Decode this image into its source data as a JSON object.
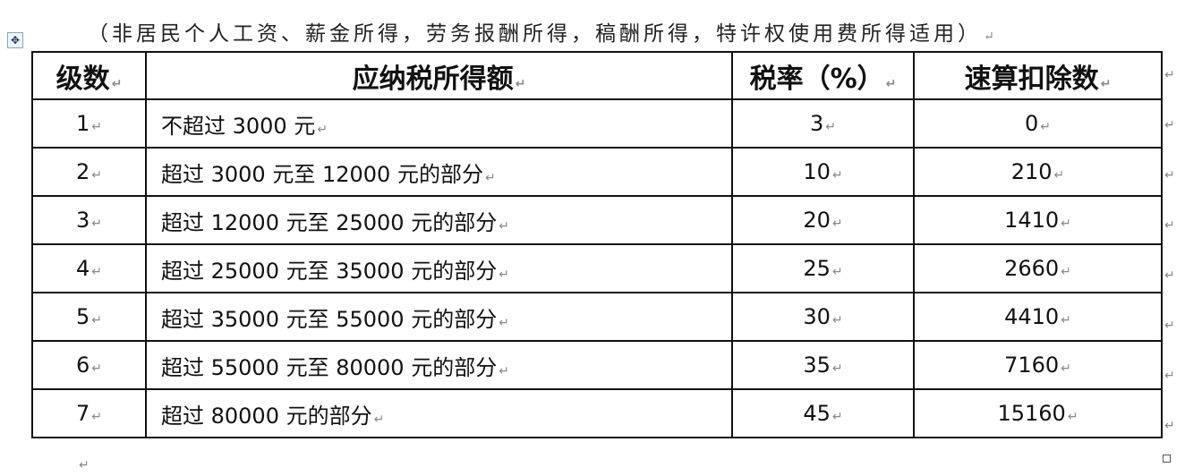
{
  "caption": "（非居民个人工资、薪金所得，劳务报酬所得，稿酬所得，特许权使用费所得适用）",
  "paragraph_mark": "↵",
  "table": {
    "headers": [
      "级数",
      "应纳税所得额",
      "税率（%）",
      "速算扣除数"
    ],
    "rows": [
      [
        "1",
        "不超过 3000 元",
        "3",
        "0"
      ],
      [
        "2",
        "超过 3000 元至 12000 元的部分",
        "10",
        "210"
      ],
      [
        "3",
        "超过 12000 元至 25000 元的部分",
        "20",
        "1410"
      ],
      [
        "4",
        "超过 25000 元至 35000 元的部分",
        "25",
        "2660"
      ],
      [
        "5",
        "超过 35000 元至 55000 元的部分",
        "30",
        "4410"
      ],
      [
        "6",
        "超过 55000 元至 80000 元的部分",
        "35",
        "7160"
      ],
      [
        "7",
        "超过 80000 元的部分",
        "45",
        "15160"
      ]
    ]
  }
}
